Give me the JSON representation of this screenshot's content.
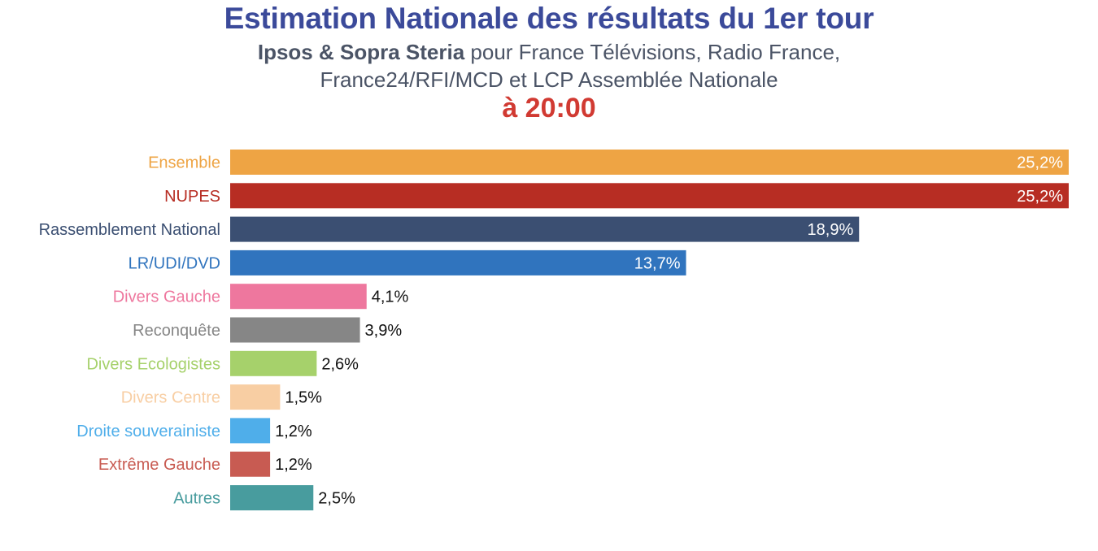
{
  "header": {
    "title": "Estimation Nationale des résultats du 1er tour",
    "subtitle_bold": "Ipsos & Sopra Steria",
    "subtitle_rest": " pour France Télévisions, Radio France,",
    "subtitle_line2": "France24/RFI/MCD et LCP Assemblée Nationale",
    "time": "à 20:00"
  },
  "chart_data": {
    "type": "bar",
    "orientation": "horizontal",
    "title": "Estimation Nationale des résultats du 1er tour",
    "xlabel": "",
    "ylabel": "",
    "grid": false,
    "xlim": [
      0,
      25.2
    ],
    "categories": [
      "Ensemble",
      "NUPES",
      "Rassemblement National",
      "LR/UDI/DVD",
      "Divers Gauche",
      "Reconquête",
      "Divers Ecologistes",
      "Divers Centre",
      "Droite souverainiste",
      "Extrême Gauche",
      "Autres"
    ],
    "values": [
      25.2,
      25.2,
      18.9,
      13.7,
      4.1,
      3.9,
      2.6,
      1.5,
      1.2,
      1.2,
      2.5
    ],
    "labels": [
      "25,2%",
      "25,2%",
      "18,9%",
      "13,7%",
      "4,1%",
      "3,9%",
      "2,6%",
      "1,5%",
      "1,2%",
      "1,2%",
      "2,5%"
    ],
    "colors": [
      "#eea444",
      "#b72d23",
      "#3b4f72",
      "#3074be",
      "#ee779e",
      "#868686",
      "#a6d16b",
      "#f8cea3",
      "#4faeea",
      "#c85b52",
      "#489c9e"
    ],
    "label_inside": [
      true,
      true,
      true,
      true,
      false,
      false,
      false,
      false,
      false,
      false,
      false
    ]
  }
}
